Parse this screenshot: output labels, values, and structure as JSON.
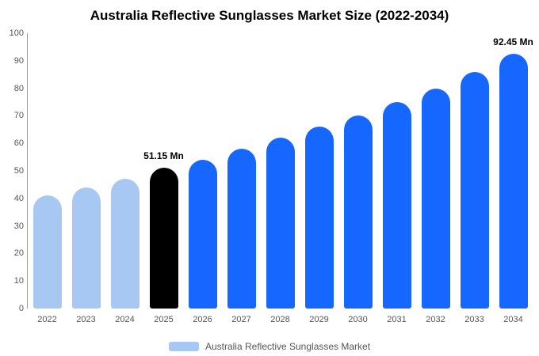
{
  "title": "Australia Reflective Sunglasses Market Size (2022-2034)",
  "chart_data": {
    "type": "bar",
    "title": "Australia Reflective Sunglasses Market Size (2022-2034)",
    "categories": [
      "2022",
      "2023",
      "2024",
      "2025",
      "2026",
      "2027",
      "2028",
      "2029",
      "2030",
      "2031",
      "2032",
      "2033",
      "2034"
    ],
    "values": [
      41,
      44,
      47,
      51.15,
      54,
      58,
      62,
      66,
      70,
      75,
      80,
      86,
      92.45
    ],
    "unit": "Mn",
    "bar_colors": [
      "#a6c8f2",
      "#a6c8f2",
      "#a6c8f2",
      "#000000",
      "#1667ff",
      "#1667ff",
      "#1667ff",
      "#1667ff",
      "#1667ff",
      "#1667ff",
      "#1667ff",
      "#1667ff",
      "#1667ff"
    ],
    "data_labels": {
      "2025": "51.15 Mn",
      "2034": "92.45 Mn"
    },
    "xlabel": "",
    "ylabel": "",
    "ylim": [
      0,
      100
    ],
    "yticks": [
      0,
      10,
      20,
      30,
      40,
      50,
      60,
      70,
      80,
      90,
      100
    ],
    "grid": false,
    "legend": {
      "position": "bottom",
      "label": "Australia Reflective Sunglasses Market",
      "swatch_color": "#a6c8f2"
    }
  }
}
